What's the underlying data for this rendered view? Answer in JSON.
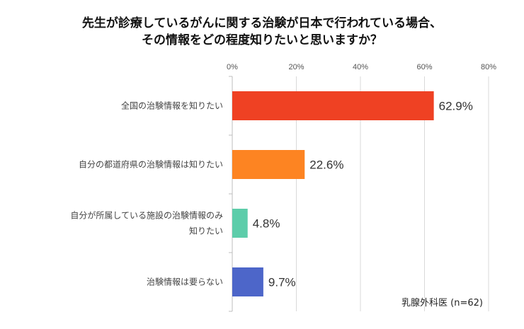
{
  "chart_data": {
    "type": "bar",
    "orientation": "horizontal",
    "title_lines": [
      "先生が診療しているがんに関する治験が日本で行われている場合、",
      "その情報をどの程度知りたいと思いますか？"
    ],
    "categories": [
      [
        "全国の治験情報を知りたい"
      ],
      [
        "自分の都道府県の治験情報は知りたい"
      ],
      [
        "自分が所属している施設の治験情報のみ",
        "知りたい"
      ],
      [
        "治験情報は要らない"
      ]
    ],
    "values": [
      62.9,
      22.6,
      4.8,
      9.7
    ],
    "value_labels": [
      "62.9%",
      "22.6%",
      "4.8%",
      "9.7%"
    ],
    "colors": [
      "#ef4123",
      "#fd8422",
      "#5dcdaa",
      "#4d66c9"
    ],
    "xlim": [
      0,
      80
    ],
    "xticks": [
      "0%",
      "20%",
      "40%",
      "60%",
      "80%"
    ],
    "tick_values": [
      0,
      20,
      40,
      60,
      80
    ],
    "grid": true,
    "note": "乳腺外科医 (n=62)"
  }
}
